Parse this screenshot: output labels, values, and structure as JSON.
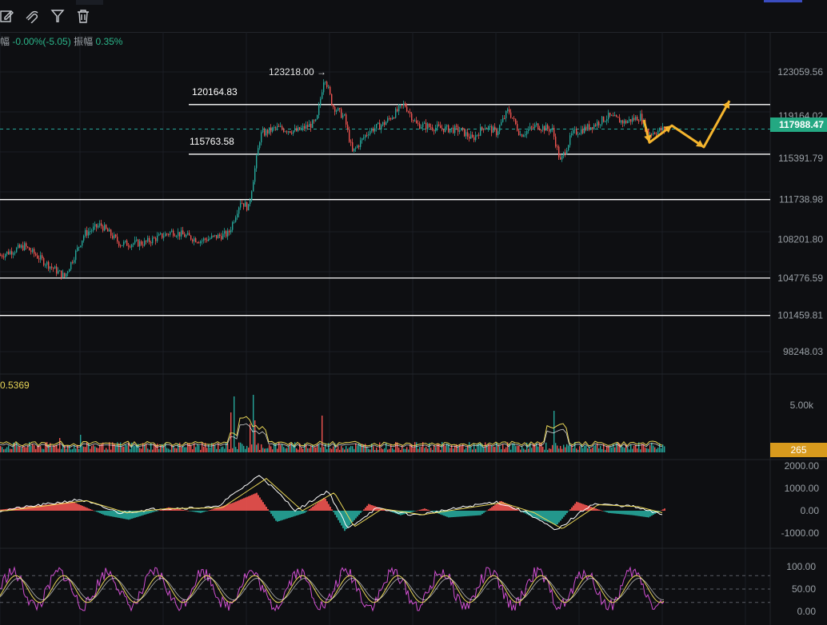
{
  "toolbar": {
    "icons": [
      "edit-icon",
      "magnet-icon",
      "filter-icon",
      "trash-icon"
    ]
  },
  "stats": {
    "amplitude_label_partial": "幅",
    "change_value": "-0.00%(-5.05)",
    "range_label": "振幅",
    "range_value": "0.35%"
  },
  "main_chart": {
    "price_axis_labels": [
      "123059.56",
      "119164.02",
      "115391.79",
      "111738.98",
      "108201.80",
      "104776.59",
      "101459.81",
      "98248.03"
    ],
    "current_price": "117988.47",
    "high_marker": "123218.00 →",
    "level_labels": [
      "120164.83",
      "115763.58"
    ]
  },
  "volume_panel": {
    "indicator_value": "0.5369",
    "axis_label": "5.00k",
    "current_volume": "265"
  },
  "macd_panel": {
    "axis_labels": [
      "2000.00",
      "1000.00",
      "0.00",
      "-1000.00"
    ]
  },
  "oscillator_panel": {
    "axis_labels": [
      "100.00",
      "50.00",
      "0.00"
    ]
  },
  "colors": {
    "up": "#26a69a",
    "down": "#ef5350",
    "accent": "#f5b52e",
    "background": "#0e0f12",
    "current_price_badge": "#24a882",
    "volume_badge": "#d89a1d"
  },
  "chart_data": {
    "type": "candlestick",
    "title": "",
    "price_axis_ticks": [
      123059.56,
      119164.02,
      115391.79,
      111738.98,
      108201.8,
      104776.59,
      101459.81,
      98248.03
    ],
    "price_path": [
      [
        0,
        106800
      ],
      [
        30,
        107600
      ],
      [
        55,
        106200
      ],
      [
        80,
        104900
      ],
      [
        105,
        108700
      ],
      [
        125,
        109500
      ],
      [
        150,
        107800
      ],
      [
        180,
        107900
      ],
      [
        215,
        108900
      ],
      [
        250,
        108100
      ],
      [
        285,
        108700
      ],
      [
        300,
        111600
      ],
      [
        310,
        111000
      ],
      [
        325,
        117500
      ],
      [
        345,
        118100
      ],
      [
        370,
        117800
      ],
      [
        395,
        118600
      ],
      [
        405,
        122800
      ],
      [
        415,
        120100
      ],
      [
        430,
        119000
      ],
      [
        440,
        115900
      ],
      [
        460,
        117800
      ],
      [
        480,
        118500
      ],
      [
        505,
        120200
      ],
      [
        520,
        118400
      ],
      [
        545,
        118100
      ],
      [
        575,
        117900
      ],
      [
        590,
        117100
      ],
      [
        605,
        118300
      ],
      [
        620,
        117700
      ],
      [
        635,
        119700
      ],
      [
        650,
        117500
      ],
      [
        670,
        118300
      ],
      [
        690,
        117900
      ],
      [
        700,
        115100
      ],
      [
        715,
        117600
      ],
      [
        740,
        118300
      ],
      [
        760,
        119100
      ],
      [
        780,
        118600
      ],
      [
        800,
        119100
      ],
      [
        810,
        117600
      ],
      [
        830,
        118000
      ]
    ],
    "horizontal_levels": [
      120164.83,
      115763.58,
      111738.98,
      104776.59,
      101459.81
    ],
    "projection_path": [
      [
        805,
        118800
      ],
      [
        812,
        116800
      ],
      [
        840,
        118300
      ],
      [
        880,
        116400
      ],
      [
        912,
        120500
      ]
    ],
    "high": 123218.0,
    "current_price": 117988.47,
    "volume_axis": [
      "5.00k"
    ],
    "volume_current": 265,
    "macd_axis": [
      2000,
      1000,
      0,
      -1000
    ],
    "oscillator_axis": [
      100,
      50,
      0
    ],
    "oscillator_guides": [
      80,
      50,
      20
    ]
  }
}
